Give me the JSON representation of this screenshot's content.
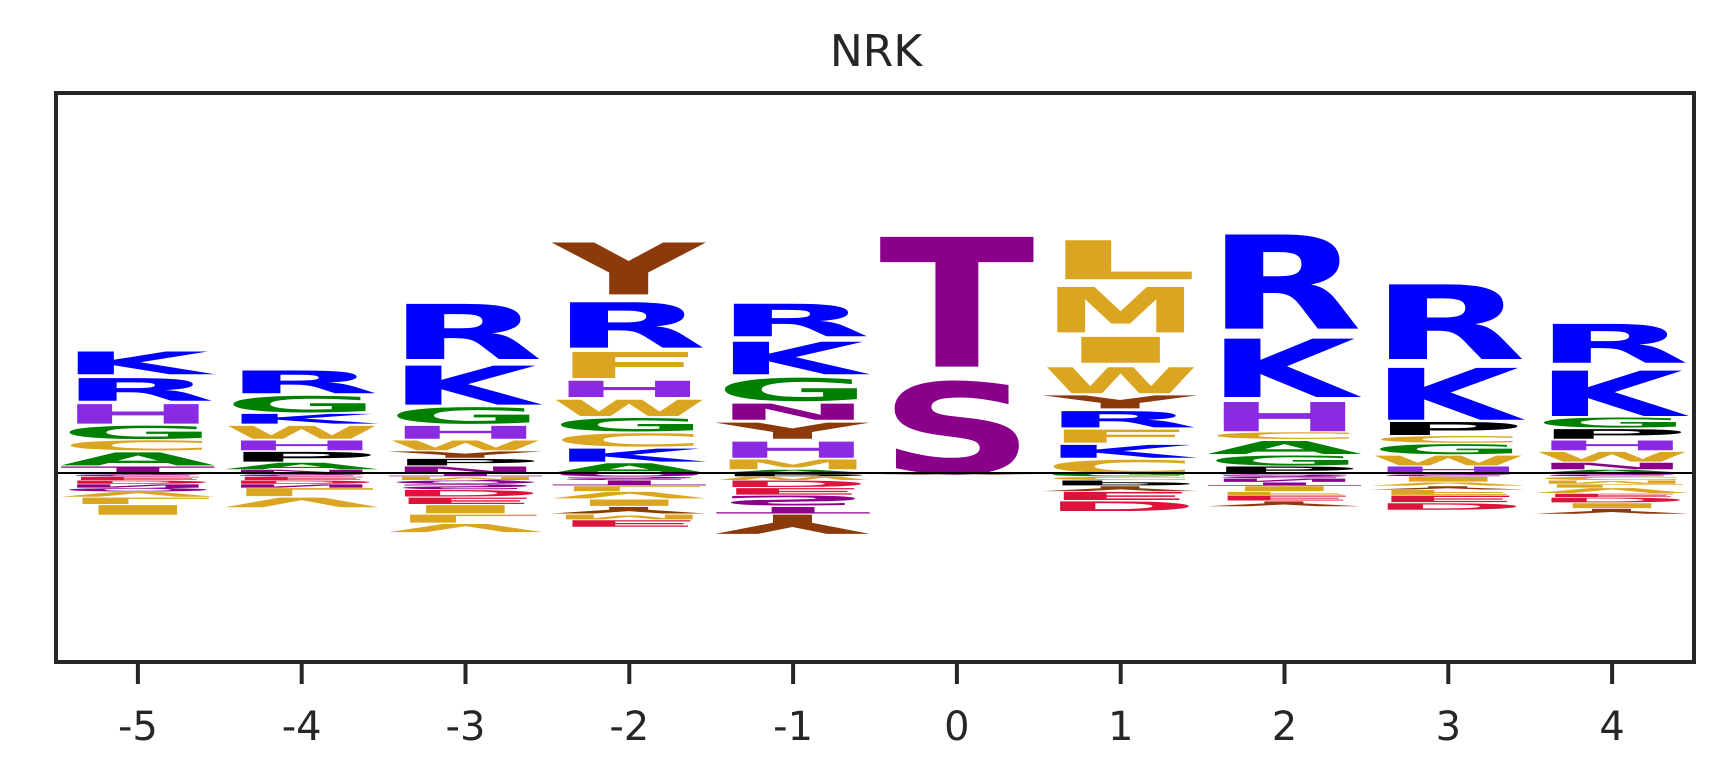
{
  "chart_data": {
    "type": "sequence-logo",
    "title": "NRK",
    "xlabel": "",
    "ylabel": "",
    "positions": [
      "-5",
      "-4",
      "-3",
      "-2",
      "-1",
      "0",
      "1",
      "2",
      "3",
      "4"
    ],
    "ylim": [
      -1.0,
      1.0
    ],
    "colors": {
      "K": "#0000ff",
      "R": "#0000ff",
      "H": "#8a2be2",
      "G": "#008000",
      "A": "#008000",
      "W": "#daa520",
      "F": "#daa520",
      "C": "#daa520",
      "M": "#daa520",
      "I": "#daa520",
      "L": "#daa520",
      "V": "#daa520",
      "Y": "#8b3a0b",
      "T": "#8b008b",
      "S": "#8b008b",
      "N": "#8b008b",
      "Q": "#8b008b",
      "D": "#dc143c",
      "E": "#dc143c",
      "P": "#000000"
    },
    "columns": [
      {
        "pos": [
          [
            "T",
            0.02
          ],
          [
            "A",
            0.04
          ],
          [
            "C",
            0.03
          ],
          [
            "G",
            0.04
          ],
          [
            "H",
            0.06
          ],
          [
            "R",
            0.07
          ],
          [
            "K",
            0.07
          ]
        ],
        "neg": [
          [
            "S",
            0.02
          ],
          [
            "E",
            0.02
          ],
          [
            "D",
            0.02
          ],
          [
            "N",
            0.02
          ],
          [
            "Q",
            0.02
          ],
          [
            "V",
            0.03
          ],
          [
            "L",
            0.04
          ],
          [
            "I",
            0.06
          ]
        ]
      },
      {
        "pos": [
          [
            "N",
            0.01
          ],
          [
            "A",
            0.02
          ],
          [
            "P",
            0.03
          ],
          [
            "H",
            0.03
          ],
          [
            "W",
            0.04
          ],
          [
            "K",
            0.03
          ],
          [
            "G",
            0.05
          ],
          [
            "R",
            0.07
          ]
        ],
        "neg": [
          [
            "S",
            0.02
          ],
          [
            "E",
            0.02
          ],
          [
            "D",
            0.02
          ],
          [
            "N",
            0.02
          ],
          [
            "L",
            0.05
          ],
          [
            "V",
            0.06
          ]
        ]
      },
      {
        "pos": [
          [
            "N",
            0.02
          ],
          [
            "P",
            0.02
          ],
          [
            "Y",
            0.02
          ],
          [
            "W",
            0.03
          ],
          [
            "H",
            0.04
          ],
          [
            "G",
            0.05
          ],
          [
            "K",
            0.12
          ],
          [
            "R",
            0.17
          ]
        ],
        "neg": [
          [
            "T",
            0.02
          ],
          [
            "M",
            0.02
          ],
          [
            "Q",
            0.02
          ],
          [
            "S",
            0.03
          ],
          [
            "D",
            0.04
          ],
          [
            "E",
            0.04
          ],
          [
            "I",
            0.05
          ],
          [
            "L",
            0.05
          ],
          [
            "V",
            0.05
          ]
        ]
      },
      {
        "pos": [
          [
            "A",
            0.03
          ],
          [
            "K",
            0.04
          ],
          [
            "C",
            0.04
          ],
          [
            "G",
            0.04
          ],
          [
            "W",
            0.05
          ],
          [
            "H",
            0.05
          ],
          [
            "F",
            0.08
          ],
          [
            "R",
            0.14
          ],
          [
            "Y",
            0.16
          ]
        ],
        "neg": [
          [
            "Q",
            0.02
          ],
          [
            "S",
            0.02
          ],
          [
            "T",
            0.03
          ],
          [
            "L",
            0.03
          ],
          [
            "V",
            0.04
          ],
          [
            "I",
            0.04
          ],
          [
            "Y",
            0.04
          ],
          [
            "M",
            0.03
          ],
          [
            "E",
            0.04
          ]
        ]
      },
      {
        "pos": [
          [
            "A",
            0.01
          ],
          [
            "M",
            0.03
          ],
          [
            "H",
            0.05
          ],
          [
            "Y",
            0.05
          ],
          [
            "N",
            0.05
          ],
          [
            "G",
            0.07
          ],
          [
            "K",
            0.1
          ],
          [
            "R",
            0.1
          ]
        ],
        "neg": [
          [
            "P",
            0.02
          ],
          [
            "W",
            0.02
          ],
          [
            "D",
            0.04
          ],
          [
            "E",
            0.04
          ],
          [
            "S",
            0.06
          ],
          [
            "T",
            0.04
          ],
          [
            "Y",
            0.12
          ]
        ]
      },
      {
        "pos": [
          [
            "S",
            0.28
          ],
          [
            "T",
            0.4
          ]
        ],
        "neg": [
          [
            "Y",
            0.01
          ]
        ]
      },
      {
        "pos": [
          [
            "C",
            0.04
          ],
          [
            "K",
            0.04
          ],
          [
            "F",
            0.04
          ],
          [
            "R",
            0.05
          ],
          [
            "Y",
            0.04
          ],
          [
            "W",
            0.08
          ],
          [
            "I",
            0.08
          ],
          [
            "M",
            0.14
          ],
          [
            "L",
            0.12
          ]
        ],
        "neg": [
          [
            "G",
            0.02
          ],
          [
            "C",
            0.02
          ],
          [
            "P",
            0.03
          ],
          [
            "Y",
            0.03
          ],
          [
            "E",
            0.05
          ],
          [
            "D",
            0.06
          ]
        ]
      },
      {
        "pos": [
          [
            "P",
            0.02
          ],
          [
            "G",
            0.03
          ],
          [
            "A",
            0.04
          ],
          [
            "C",
            0.02
          ],
          [
            "H",
            0.09
          ],
          [
            "K",
            0.18
          ],
          [
            "R",
            0.29
          ]
        ],
        "neg": [
          [
            "Q",
            0.01
          ],
          [
            "S",
            0.02
          ],
          [
            "N",
            0.02
          ],
          [
            "T",
            0.02
          ],
          [
            "I",
            0.03
          ],
          [
            "F",
            0.02
          ],
          [
            "E",
            0.03
          ],
          [
            "Y",
            0.03
          ]
        ]
      },
      {
        "pos": [
          [
            "H",
            0.02
          ],
          [
            "W",
            0.03
          ],
          [
            "G",
            0.03
          ],
          [
            "C",
            0.02
          ],
          [
            "P",
            0.04
          ],
          [
            "K",
            0.16
          ],
          [
            "R",
            0.23
          ]
        ],
        "neg": [
          [
            "S",
            0.02
          ],
          [
            "I",
            0.03
          ],
          [
            "V",
            0.02
          ],
          [
            "Y",
            0.02
          ],
          [
            "F",
            0.03
          ],
          [
            "E",
            0.04
          ],
          [
            "D",
            0.04
          ]
        ]
      },
      {
        "pos": [
          [
            "A",
            0.01
          ],
          [
            "N",
            0.02
          ],
          [
            "W",
            0.03
          ],
          [
            "H",
            0.03
          ],
          [
            "P",
            0.03
          ],
          [
            "G",
            0.03
          ],
          [
            "K",
            0.14
          ],
          [
            "R",
            0.12
          ]
        ],
        "neg": [
          [
            "S",
            0.02
          ],
          [
            "C",
            0.02
          ],
          [
            "M",
            0.02
          ],
          [
            "L",
            0.02
          ],
          [
            "V",
            0.03
          ],
          [
            "E",
            0.02
          ],
          [
            "D",
            0.03
          ],
          [
            "I",
            0.03
          ],
          [
            "Y",
            0.03
          ]
        ]
      }
    ],
    "grid": false
  }
}
